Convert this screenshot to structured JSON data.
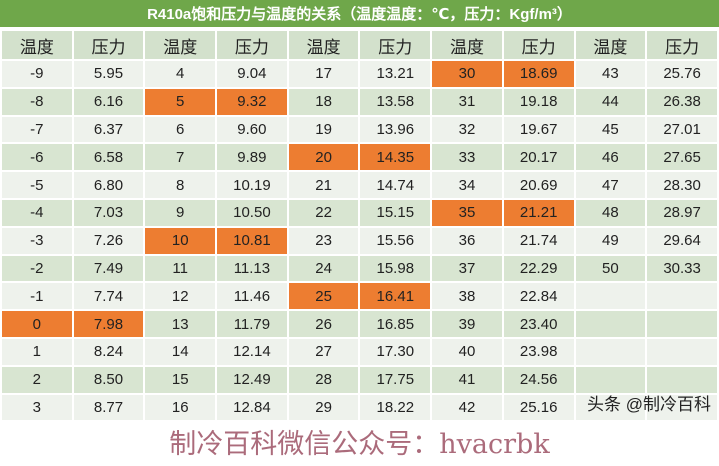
{
  "title": "R410a饱和压力与温度的关系（温度温度：℃，压力：Kgf/m³）",
  "headers": [
    "温度",
    "压力",
    "温度",
    "压力",
    "温度",
    "压力",
    "温度",
    "压力",
    "温度",
    "压力"
  ],
  "rows": [
    [
      "-9",
      "5.95",
      "4",
      "9.04",
      "17",
      "13.21",
      "30",
      "18.69",
      "43",
      "25.76"
    ],
    [
      "-8",
      "6.16",
      "5",
      "9.32",
      "18",
      "13.58",
      "31",
      "19.18",
      "44",
      "26.38"
    ],
    [
      "-7",
      "6.37",
      "6",
      "9.60",
      "19",
      "13.96",
      "32",
      "19.67",
      "45",
      "27.01"
    ],
    [
      "-6",
      "6.58",
      "7",
      "9.89",
      "20",
      "14.35",
      "33",
      "20.17",
      "46",
      "27.65"
    ],
    [
      "-5",
      "6.80",
      "8",
      "10.19",
      "21",
      "14.74",
      "34",
      "20.69",
      "47",
      "28.30"
    ],
    [
      "-4",
      "7.03",
      "9",
      "10.50",
      "22",
      "15.15",
      "35",
      "21.21",
      "48",
      "28.97"
    ],
    [
      "-3",
      "7.26",
      "10",
      "10.81",
      "23",
      "15.56",
      "36",
      "21.74",
      "49",
      "29.64"
    ],
    [
      "-2",
      "7.49",
      "11",
      "11.13",
      "24",
      "15.98",
      "37",
      "22.29",
      "50",
      "30.33"
    ],
    [
      "-1",
      "7.74",
      "12",
      "11.46",
      "25",
      "16.41",
      "38",
      "22.84",
      "",
      ""
    ],
    [
      "0",
      "7.98",
      "13",
      "11.79",
      "26",
      "16.85",
      "39",
      "23.40",
      "",
      ""
    ],
    [
      "1",
      "8.24",
      "14",
      "12.14",
      "27",
      "17.30",
      "40",
      "23.98",
      "",
      ""
    ],
    [
      "2",
      "8.50",
      "15",
      "12.49",
      "28",
      "17.75",
      "41",
      "24.56",
      "",
      ""
    ],
    [
      "3",
      "8.77",
      "16",
      "12.84",
      "29",
      "18.22",
      "42",
      "25.16",
      "",
      ""
    ]
  ],
  "highlighted_temperatures": [
    "0",
    "5",
    "10",
    "20",
    "25",
    "30",
    "35"
  ],
  "colors": {
    "title_bg": "#6fa74a",
    "header_bg": "#d3e1cc",
    "row_light": "#eef2ec",
    "row_dark": "#d8e5d1",
    "highlight": "#ed7d31"
  },
  "watermark": "制冷百科微信公众号：hvacrbk",
  "source_watermark": "头条 @制冷百科"
}
